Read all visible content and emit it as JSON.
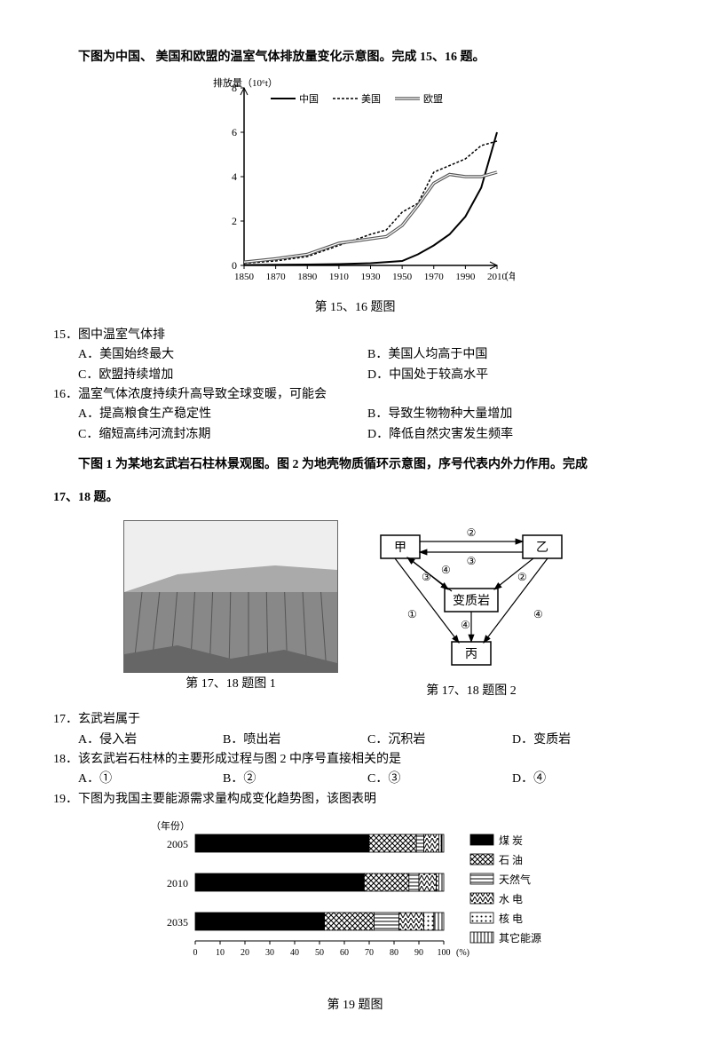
{
  "intro1": "下图为中国、 美国和欧盟的温室气体排放量变化示意图。完成 15、16 题。",
  "emission_chart": {
    "ylabel": "排放量（10⁶t）",
    "xlabel": "（年份）",
    "legend": [
      "中国",
      "美国",
      "欧盟"
    ],
    "xlim": [
      1850,
      2010
    ],
    "xtick_step": 20,
    "ylim": [
      0,
      8
    ],
    "ytick_step": 2,
    "caption": "第 15、16 题图",
    "line_colors": [
      "#000000",
      "#000000",
      "#555555"
    ],
    "dash": [
      "solid",
      "3,2",
      "none"
    ],
    "series": {
      "china": [
        [
          1850,
          0.02
        ],
        [
          1870,
          0.03
        ],
        [
          1890,
          0.04
        ],
        [
          1910,
          0.06
        ],
        [
          1930,
          0.1
        ],
        [
          1950,
          0.2
        ],
        [
          1960,
          0.5
        ],
        [
          1970,
          0.9
        ],
        [
          1980,
          1.4
        ],
        [
          1990,
          2.2
        ],
        [
          2000,
          3.5
        ],
        [
          2010,
          6.0
        ]
      ],
      "usa": [
        [
          1850,
          0.1
        ],
        [
          1870,
          0.2
        ],
        [
          1890,
          0.4
        ],
        [
          1910,
          0.9
        ],
        [
          1930,
          1.4
        ],
        [
          1940,
          1.6
        ],
        [
          1950,
          2.4
        ],
        [
          1960,
          2.8
        ],
        [
          1970,
          4.2
        ],
        [
          1980,
          4.5
        ],
        [
          1990,
          4.8
        ],
        [
          2000,
          5.4
        ],
        [
          2010,
          5.6
        ]
      ],
      "eu": [
        [
          1850,
          0.15
        ],
        [
          1870,
          0.3
        ],
        [
          1890,
          0.5
        ],
        [
          1910,
          1.0
        ],
        [
          1930,
          1.2
        ],
        [
          1940,
          1.3
        ],
        [
          1950,
          1.8
        ],
        [
          1960,
          2.7
        ],
        [
          1970,
          3.7
        ],
        [
          1980,
          4.1
        ],
        [
          1990,
          4.0
        ],
        [
          2000,
          4.0
        ],
        [
          2010,
          4.2
        ]
      ]
    }
  },
  "q15": {
    "stem": "15．图中温室气体排",
    "A": "A．美国始终最大",
    "B": "B．美国人均高于中国",
    "C": "C．欧盟持续增加",
    "D": "D．中国处于较高水平"
  },
  "q16": {
    "stem": "16．温室气体浓度持续升高导致全球变暖，可能会",
    "A": "A．提高粮食生产稳定性",
    "B": "B．导致生物物种大量增加",
    "C": "C．缩短高纬河流封冻期",
    "D": "D．降低自然灾害发生频率"
  },
  "intro2a": "下图 1 为某地玄武岩石柱林景观图。图 2 为地壳物质循环示意图，序号代表内外力作用。完成",
  "intro2b": "17、18 题。",
  "fig17_1_caption": "第 17、18 题图 1",
  "fig17_2_caption": "第 17、18 题图 2",
  "rockcycle": {
    "nodes": {
      "jia": "甲",
      "yi": "乙",
      "meta": "变质岩",
      "bing": "丙"
    },
    "edges": [
      "①",
      "②",
      "③",
      "④"
    ],
    "box_stroke": "#000",
    "font": 14
  },
  "q17": {
    "stem": "17．玄武岩属于",
    "A": "A．侵入岩",
    "B": "B．喷出岩",
    "C": "C．沉积岩",
    "D": "D．变质岩"
  },
  "q18": {
    "stem": "18．该玄武岩石柱林的主要形成过程与图 2 中序号直接相关的是",
    "A": "A．①",
    "B": "B．②",
    "C": "C．③",
    "D": "D．④"
  },
  "q19": {
    "stem": "19．下图为我国主要能源需求量构成变化趋势图，该图表明",
    "caption": "第 19 题图",
    "ylabel": "（年份）",
    "xlabel_ticks": [
      0,
      10,
      20,
      30,
      40,
      50,
      60,
      70,
      80,
      90,
      100
    ],
    "xunit": "(%)",
    "years": [
      "2005",
      "2010",
      "2035"
    ],
    "legend": [
      "煤 炭",
      "石 油",
      "天然气",
      "水 电",
      "核 电",
      "其它能源"
    ],
    "data": {
      "2005": [
        70,
        19,
        3,
        6,
        1,
        1
      ],
      "2010": [
        68,
        18,
        4,
        7,
        1,
        2
      ],
      "2035": [
        52,
        20,
        10,
        10,
        4,
        4
      ]
    },
    "fills": [
      "solid",
      "crosshatch",
      "hstripe",
      "zigzag",
      "dots",
      "vstripe"
    ],
    "colors": {
      "solid": "#000",
      "border": "#000",
      "bg": "#fff"
    }
  }
}
